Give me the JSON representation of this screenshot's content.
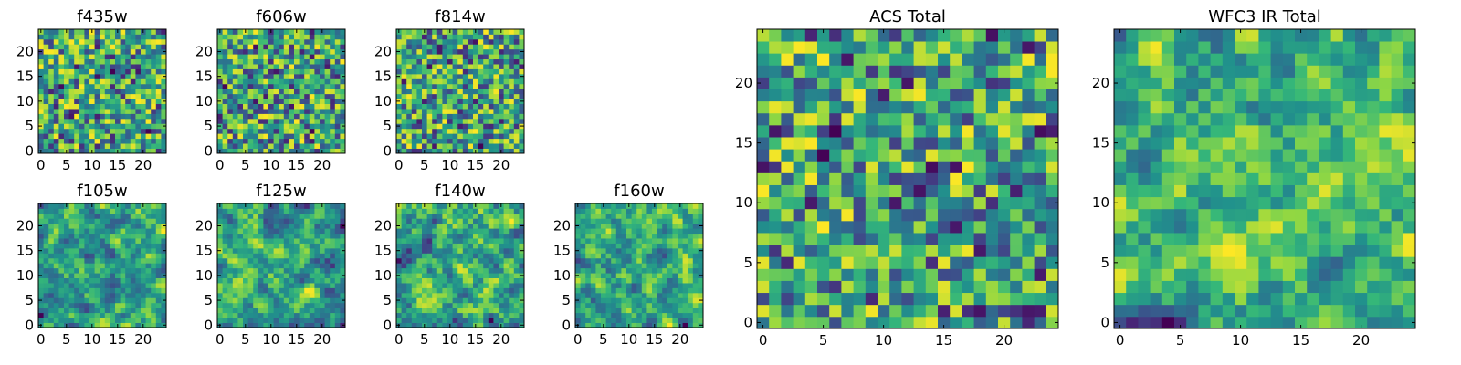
{
  "chart_data": [
    {
      "type": "heatmap",
      "title": "f435w",
      "size": 25,
      "seed": 11,
      "smooth": 0,
      "xticks": [
        0,
        5,
        10,
        15,
        20
      ],
      "yticks": [
        0,
        5,
        10,
        15,
        20
      ],
      "range": [
        -0.5,
        24.5
      ],
      "colormap": "viridis"
    },
    {
      "type": "heatmap",
      "title": "f606w",
      "size": 25,
      "seed": 23,
      "smooth": 0,
      "xticks": [
        0,
        5,
        10,
        15,
        20
      ],
      "yticks": [
        0,
        5,
        10,
        15,
        20
      ],
      "range": [
        -0.5,
        24.5
      ],
      "colormap": "viridis"
    },
    {
      "type": "heatmap",
      "title": "f814w",
      "size": 25,
      "seed": 37,
      "smooth": 0,
      "xticks": [
        0,
        5,
        10,
        15,
        20
      ],
      "yticks": [
        0,
        5,
        10,
        15,
        20
      ],
      "range": [
        -0.5,
        24.5
      ],
      "colormap": "viridis"
    },
    {
      "type": "heatmap",
      "title": "f105w",
      "size": 25,
      "seed": 41,
      "smooth": 1,
      "xticks": [
        0,
        5,
        10,
        15,
        20
      ],
      "yticks": [
        0,
        5,
        10,
        15,
        20
      ],
      "range": [
        -0.5,
        24.5
      ],
      "colormap": "viridis"
    },
    {
      "type": "heatmap",
      "title": "f125w",
      "size": 25,
      "seed": 53,
      "smooth": 1,
      "xticks": [
        0,
        5,
        10,
        15,
        20
      ],
      "yticks": [
        0,
        5,
        10,
        15,
        20
      ],
      "range": [
        -0.5,
        24.5
      ],
      "colormap": "viridis"
    },
    {
      "type": "heatmap",
      "title": "f140w",
      "size": 25,
      "seed": 67,
      "smooth": 1,
      "xticks": [
        0,
        5,
        10,
        15,
        20
      ],
      "yticks": [
        0,
        5,
        10,
        15,
        20
      ],
      "range": [
        -0.5,
        24.5
      ],
      "colormap": "viridis"
    },
    {
      "type": "heatmap",
      "title": "f160w",
      "size": 25,
      "seed": 79,
      "smooth": 1,
      "xticks": [
        0,
        5,
        10,
        15,
        20
      ],
      "yticks": [
        0,
        5,
        10,
        15,
        20
      ],
      "range": [
        -0.5,
        24.5
      ],
      "colormap": "viridis"
    },
    {
      "type": "heatmap",
      "title": "ACS Total",
      "size": 25,
      "seed": 83,
      "smooth": 0,
      "xticks": [
        0,
        5,
        10,
        15,
        20
      ],
      "yticks": [
        0,
        5,
        10,
        15,
        20
      ],
      "range": [
        -0.5,
        24.5
      ],
      "colormap": "viridis"
    },
    {
      "type": "heatmap",
      "title": "WFC3 IR Total",
      "size": 25,
      "seed": 97,
      "smooth": 1,
      "xticks": [
        0,
        5,
        10,
        15,
        20
      ],
      "yticks": [
        0,
        5,
        10,
        15,
        20
      ],
      "range": [
        -0.5,
        24.5
      ],
      "colormap": "viridis"
    }
  ]
}
